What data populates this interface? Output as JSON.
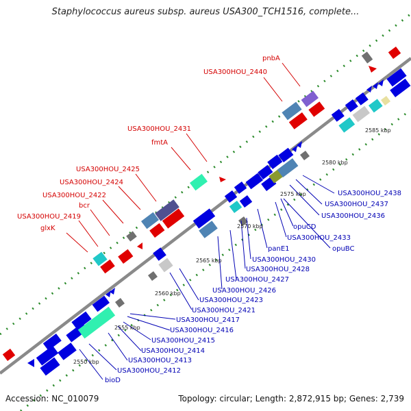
{
  "title": "Staphylococcus aureus subsp. aureus USA300_TCH1516, complete...",
  "footer": {
    "accession": "Accession: NC_010079",
    "summary": "Topology: circular; Length: 2,872,915 bp; Genes: 2,739"
  },
  "ticks": [
    "2550 kbp",
    "2555 kbp",
    "2560 kbp",
    "2565 kbp",
    "2570 kbp",
    "2575 kbp",
    "2580 kbp",
    "2585 kbp"
  ],
  "labels_top": [
    "pnbA",
    "USA300HOU_2440",
    "USA300HOU_2431",
    "fmtA",
    "USA300HOU_2425",
    "USA300HOU_2424",
    "USA300HOU_2422",
    "bcr",
    "USA300HOU_2419",
    "glxK"
  ],
  "labels_bottom": [
    "USA300HOU_2438",
    "USA300HOU_2437",
    "USA300HOU_2436",
    "opuCD",
    "USA300HOU_2433",
    "opuBC",
    "panE1",
    "USA300HOU_2430",
    "USA300HOU_2428",
    "USA300HOU_2427",
    "USA300HOU_2426",
    "USA300HOU_2423",
    "USA300HOU_2421",
    "USA300HOU_2417",
    "USA300HOU_2416",
    "USA300HOU_2415",
    "USA300HOU_2414",
    "USA300HOU_2413",
    "USA300HOU_2412",
    "bioD"
  ],
  "colors": {
    "cds_forward": "#0000e0",
    "gene_reverse": "#e00000",
    "backbone": "#888888",
    "gc_dots": "#2a8a2a",
    "label_red": "#d40000",
    "label_blue": "#0000b4"
  }
}
